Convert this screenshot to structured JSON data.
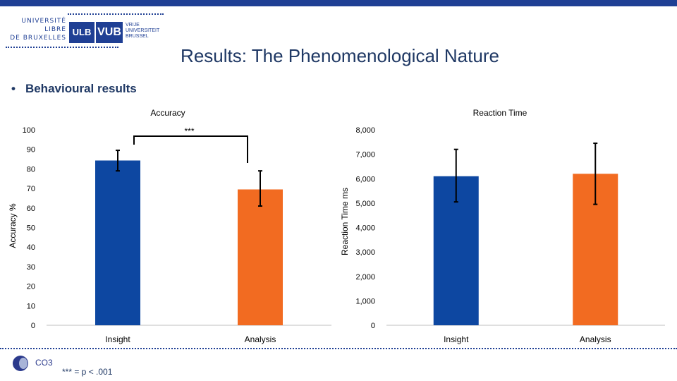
{
  "logo": {
    "ulb_lines": [
      "UNIVERSITÉ",
      "LIBRE",
      "DE BRUXELLES"
    ],
    "ulb_mark": "ULB",
    "vub_mark": "VUB",
    "vub_lines": [
      "VRIJE",
      "UNIVERSITEIT",
      "BRUSSEL"
    ]
  },
  "slide": {
    "title": "Results: The Phenomenological Nature",
    "bullet": "Behavioural results",
    "footer_logo_label": "CO3",
    "footnote": "*** = p < .001"
  },
  "colors": {
    "insight": "#0d47a1",
    "analysis": "#f26b21",
    "accent": "#1f3f94",
    "text": "#1f3864"
  },
  "chart_data": [
    {
      "type": "bar",
      "title": "Accuracy",
      "ylabel": "Accuracy %",
      "xlabel": "",
      "categories": [
        "Insight",
        "Analysis"
      ],
      "values": [
        84.3,
        69.5
      ],
      "errors": [
        [
          79,
          89.5
        ],
        [
          61,
          79
        ]
      ],
      "ylim": [
        0,
        100
      ],
      "yticks": [
        0,
        10,
        20,
        30,
        40,
        50,
        60,
        70,
        80,
        90,
        100
      ],
      "ytick_labels": [
        "0",
        "10",
        "20",
        "30",
        "40",
        "50",
        "60",
        "70",
        "80",
        "90",
        "100"
      ],
      "grid": false,
      "significance": {
        "label": "***",
        "between": [
          "Insight",
          "Analysis"
        ]
      }
    },
    {
      "type": "bar",
      "title": "Reaction Time",
      "ylabel": "Reaction Time ms",
      "xlabel": "",
      "categories": [
        "Insight",
        "Analysis"
      ],
      "values": [
        6100,
        6200
      ],
      "errors": [
        [
          5050,
          7200
        ],
        [
          4950,
          7450
        ]
      ],
      "ylim": [
        0,
        8000
      ],
      "yticks": [
        0,
        1000,
        2000,
        3000,
        4000,
        5000,
        6000,
        7000,
        8000
      ],
      "ytick_labels": [
        "0",
        "1,000",
        "2,000",
        "3,000",
        "4,000",
        "5,000",
        "6,000",
        "7,000",
        "8,000"
      ],
      "grid": false
    }
  ]
}
